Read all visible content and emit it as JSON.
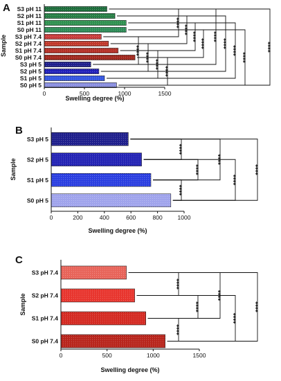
{
  "chart_data": [
    {
      "panel": "A",
      "type": "bar",
      "orientation": "horizontal",
      "categories": [
        "S3 pH 11",
        "S2 pH 11",
        "S1 pH 11",
        "S0 pH 11",
        "S3 pH 7.4",
        "S2 pH 7.4",
        "S1 pH 7.4",
        "S0 pH 7.4",
        "S3 pH 5",
        "S2 pH 5",
        "S1 pH 5",
        "S0 pH 5"
      ],
      "values": [
        780,
        880,
        1020,
        1020,
        710,
        800,
        920,
        1130,
        580,
        680,
        750,
        900
      ],
      "colors": [
        "#1e6e3c",
        "#277f46",
        "#2f9150",
        "#2e8b57",
        "#c83c3c",
        "#c0392b",
        "#b33027",
        "#a0281e",
        "#1f1f8c",
        "#2020b8",
        "#3355e0",
        "#8a8fe0"
      ],
      "xlabel": "Swelling degree (%)",
      "ylabel": "Sample",
      "xticks": [
        0,
        500,
        1000,
        1500
      ],
      "xlim": [
        0,
        1500
      ],
      "significance_label": "****"
    },
    {
      "panel": "B",
      "type": "bar",
      "orientation": "horizontal",
      "categories": [
        "S3 pH 5",
        "S2 pH 5",
        "S1 pH 5",
        "S0 pH 5"
      ],
      "values": [
        580,
        680,
        750,
        900
      ],
      "colors": [
        "#1f1f8c",
        "#2323b4",
        "#2b3fe0",
        "#a0a4ec"
      ],
      "xlabel": "Swelling degree (%)",
      "ylabel": "Sample",
      "xticks": [
        0,
        200,
        400,
        600,
        800,
        1000
      ],
      "xlim": [
        0,
        1000
      ],
      "significance_label": "****"
    },
    {
      "panel": "C",
      "type": "bar",
      "orientation": "horizontal",
      "categories": [
        "S3 pH 7.4",
        "S2 pH 7.4",
        "S1 pH 7.4",
        "S0 pH 7.4"
      ],
      "values": [
        710,
        800,
        920,
        1130
      ],
      "colors": [
        "#e8645a",
        "#e8352e",
        "#d42a22",
        "#b8251c"
      ],
      "xlabel": "Swelling degree (%)",
      "ylabel": "Sample",
      "xticks": [
        0,
        500,
        1000,
        1500
      ],
      "xlim": [
        0,
        1500
      ],
      "significance_label": "****"
    }
  ]
}
